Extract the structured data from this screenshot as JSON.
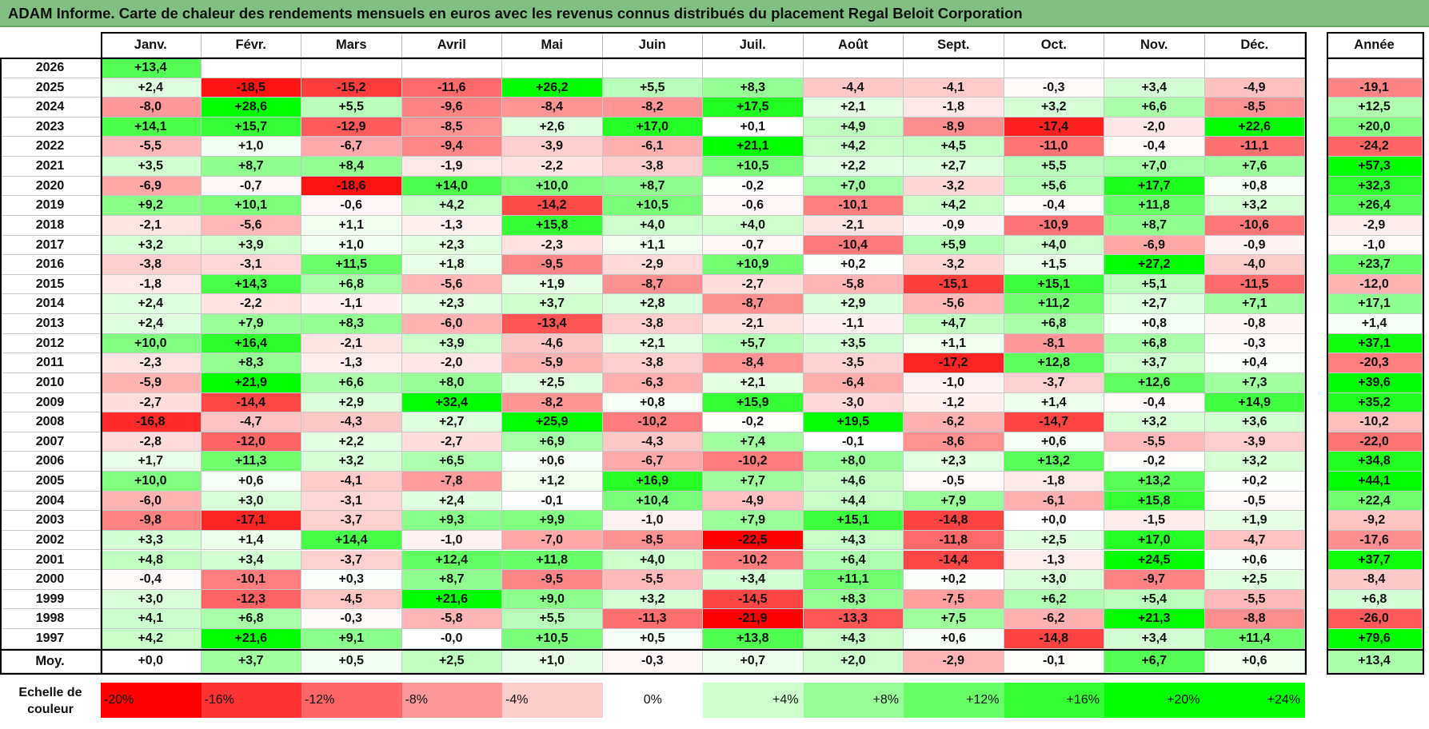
{
  "title": "ADAM Informe. Carte de chaleur des rendements mensuels en euros avec les revenus connus distribués du placement Regal Beloit Corporation",
  "months": [
    "Janv.",
    "Févr.",
    "Mars",
    "Avril",
    "Mai",
    "Juin",
    "Juil.",
    "Août",
    "Sept.",
    "Oct.",
    "Nov.",
    "Déc."
  ],
  "annual_header": "Année",
  "average_label": "Moy.",
  "scale_label_line1": "Echelle de",
  "scale_label_line2": "couleur",
  "colors": {
    "green": "#00ff00",
    "red": "#ff0000",
    "title_bg": "#7fbf7f",
    "neutral": "#ffffff"
  },
  "chart_data": {
    "type": "heatmap",
    "title": "ADAM Informe. Carte de chaleur des rendements mensuels en euros avec les revenus connus distribués du placement Regal Beloit Corporation",
    "x_categories": [
      "Janv.",
      "Févr.",
      "Mars",
      "Avril",
      "Mai",
      "Juin",
      "Juil.",
      "Août",
      "Sept.",
      "Oct.",
      "Nov.",
      "Déc."
    ],
    "rows": [
      {
        "year": "2026",
        "values": [
          "+13,4",
          "",
          "",
          "",
          "",
          "",
          "",
          "",
          "",
          "",
          "",
          ""
        ],
        "annual": ""
      },
      {
        "year": "2025",
        "values": [
          "+2,4",
          "-18,5",
          "-15,2",
          "-11,6",
          "+26,2",
          "+5,5",
          "+8,3",
          "-4,4",
          "-4,1",
          "-0,3",
          "+3,4",
          "-4,9"
        ],
        "annual": "-19,1"
      },
      {
        "year": "2024",
        "values": [
          "-8,0",
          "+28,6",
          "+5,5",
          "-9,6",
          "-8,4",
          "-8,2",
          "+17,5",
          "+2,1",
          "-1,8",
          "+3,2",
          "+6,6",
          "-8,5"
        ],
        "annual": "+12,5"
      },
      {
        "year": "2023",
        "values": [
          "+14,1",
          "+15,7",
          "-12,9",
          "-8,5",
          "+2,6",
          "+17,0",
          "+0,1",
          "+4,9",
          "-8,9",
          "-17,4",
          "-2,0",
          "+22,6"
        ],
        "annual": "+20,0"
      },
      {
        "year": "2022",
        "values": [
          "-5,5",
          "+1,0",
          "-6,7",
          "-9,4",
          "-3,9",
          "-6,1",
          "+21,1",
          "+4,2",
          "+4,5",
          "-11,0",
          "-0,4",
          "-11,1"
        ],
        "annual": "-24,2"
      },
      {
        "year": "2021",
        "values": [
          "+3,5",
          "+8,7",
          "+8,4",
          "-1,9",
          "-2,2",
          "-3,8",
          "+10,5",
          "+2,2",
          "+2,7",
          "+5,5",
          "+7,0",
          "+7,6"
        ],
        "annual": "+57,3"
      },
      {
        "year": "2020",
        "values": [
          "-6,9",
          "-0,7",
          "-18,6",
          "+14,0",
          "+10,0",
          "+8,7",
          "-0,2",
          "+7,0",
          "-3,2",
          "+5,6",
          "+17,7",
          "+0,8"
        ],
        "annual": "+32,3"
      },
      {
        "year": "2019",
        "values": [
          "+9,2",
          "+10,1",
          "-0,6",
          "+4,2",
          "-14,2",
          "+10,5",
          "-0,6",
          "-10,1",
          "+4,2",
          "-0,4",
          "+11,8",
          "+3,2"
        ],
        "annual": "+26,4"
      },
      {
        "year": "2018",
        "values": [
          "-2,1",
          "-5,6",
          "+1,1",
          "-1,3",
          "+15,8",
          "+4,0",
          "+4,0",
          "-2,1",
          "-0,9",
          "-10,9",
          "+8,7",
          "-10,6"
        ],
        "annual": "-2,9"
      },
      {
        "year": "2017",
        "values": [
          "+3,2",
          "+3,9",
          "+1,0",
          "+2,3",
          "-2,3",
          "+1,1",
          "-0,7",
          "-10,4",
          "+5,9",
          "+4,0",
          "-6,9",
          "-0,9"
        ],
        "annual": "-1,0"
      },
      {
        "year": "2016",
        "values": [
          "-3,8",
          "-3,1",
          "+11,5",
          "+1,8",
          "-9,5",
          "-2,9",
          "+10,9",
          "+0,2",
          "-3,2",
          "+1,5",
          "+27,2",
          "-4,0"
        ],
        "annual": "+23,7"
      },
      {
        "year": "2015",
        "values": [
          "-1,8",
          "+14,3",
          "+6,8",
          "-5,6",
          "+1,9",
          "-8,7",
          "-2,7",
          "-5,8",
          "-15,1",
          "+15,1",
          "+5,1",
          "-11,5"
        ],
        "annual": "-12,0"
      },
      {
        "year": "2014",
        "values": [
          "+2,4",
          "-2,2",
          "-1,1",
          "+2,3",
          "+3,7",
          "+2,8",
          "-8,7",
          "+2,9",
          "-5,6",
          "+11,2",
          "+2,7",
          "+7,1"
        ],
        "annual": "+17,1"
      },
      {
        "year": "2013",
        "values": [
          "+2,4",
          "+7,9",
          "+8,3",
          "-6,0",
          "-13,4",
          "-3,8",
          "-2,1",
          "-1,1",
          "+4,7",
          "+6,8",
          "+0,8",
          "-0,8"
        ],
        "annual": "+1,4"
      },
      {
        "year": "2012",
        "values": [
          "+10,0",
          "+16,4",
          "-2,1",
          "+3,9",
          "-4,6",
          "+2,1",
          "+5,7",
          "+3,5",
          "+1,1",
          "-8,1",
          "+6,8",
          "-0,3"
        ],
        "annual": "+37,1"
      },
      {
        "year": "2011",
        "values": [
          "-2,3",
          "+8,3",
          "-1,3",
          "-2,0",
          "-5,9",
          "-3,8",
          "-8,4",
          "-3,5",
          "-17,2",
          "+12,8",
          "+3,7",
          "+0,4"
        ],
        "annual": "-20,3"
      },
      {
        "year": "2010",
        "values": [
          "-5,9",
          "+21,9",
          "+6,6",
          "+8,0",
          "+2,5",
          "-6,3",
          "+2,1",
          "-6,4",
          "-1,0",
          "-3,7",
          "+12,6",
          "+7,3"
        ],
        "annual": "+39,6"
      },
      {
        "year": "2009",
        "values": [
          "-2,7",
          "-14,4",
          "+2,9",
          "+32,4",
          "-8,2",
          "+0,8",
          "+15,9",
          "-3,0",
          "-1,2",
          "+1,4",
          "-0,4",
          "+14,9"
        ],
        "annual": "+35,2"
      },
      {
        "year": "2008",
        "values": [
          "-16,8",
          "-4,7",
          "-4,3",
          "+2,7",
          "+25,9",
          "-10,2",
          "-0,2",
          "+19,5",
          "-6,2",
          "-14,7",
          "+3,2",
          "+3,6"
        ],
        "annual": "-10,2"
      },
      {
        "year": "2007",
        "values": [
          "-2,8",
          "-12,0",
          "+2,2",
          "-2,7",
          "+6,9",
          "-4,3",
          "+7,4",
          "-0,1",
          "-8,6",
          "+0,6",
          "-5,5",
          "-3,9"
        ],
        "annual": "-22,0"
      },
      {
        "year": "2006",
        "values": [
          "+1,7",
          "+11,3",
          "+3,2",
          "+6,5",
          "+0,6",
          "-6,7",
          "-10,2",
          "+8,0",
          "+2,3",
          "+13,2",
          "-0,2",
          "+3,2"
        ],
        "annual": "+34,8"
      },
      {
        "year": "2005",
        "values": [
          "+10,0",
          "+0,6",
          "-4,1",
          "-7,8",
          "+1,2",
          "+16,9",
          "+7,7",
          "+4,6",
          "-0,5",
          "-1,8",
          "+13,2",
          "+0,2"
        ],
        "annual": "+44,1"
      },
      {
        "year": "2004",
        "values": [
          "-6,0",
          "+3,0",
          "-3,1",
          "+2,4",
          "-0,1",
          "+10,4",
          "-4,9",
          "+4,4",
          "+7,9",
          "-6,1",
          "+15,8",
          "-0,5"
        ],
        "annual": "+22,4"
      },
      {
        "year": "2003",
        "values": [
          "-9,8",
          "-17,1",
          "-3,7",
          "+9,3",
          "+9,9",
          "-1,0",
          "+7,9",
          "+15,1",
          "-14,8",
          "+0,0",
          "-1,5",
          "+1,9"
        ],
        "annual": "-9,2"
      },
      {
        "year": "2002",
        "values": [
          "+3,3",
          "+1,4",
          "+14,4",
          "-1,0",
          "-7,0",
          "-8,5",
          "-22,5",
          "+4,3",
          "-11,8",
          "+2,5",
          "+17,0",
          "-4,7"
        ],
        "annual": "-17,6"
      },
      {
        "year": "2001",
        "values": [
          "+4,8",
          "+3,4",
          "-3,7",
          "+12,4",
          "+11,8",
          "+4,0",
          "-10,2",
          "+6,4",
          "-14,4",
          "-1,3",
          "+24,5",
          "+0,6"
        ],
        "annual": "+37,7"
      },
      {
        "year": "2000",
        "values": [
          "-0,4",
          "-10,1",
          "+0,3",
          "+8,7",
          "-9,5",
          "-5,5",
          "+3,4",
          "+11,1",
          "+0,2",
          "+3,0",
          "-9,7",
          "+2,5"
        ],
        "annual": "-8,4"
      },
      {
        "year": "1999",
        "values": [
          "+3,0",
          "-12,3",
          "-4,5",
          "+21,6",
          "+9,0",
          "+3,2",
          "-14,5",
          "+8,3",
          "-7,5",
          "+6,2",
          "+5,4",
          "-5,5"
        ],
        "annual": "+6,8"
      },
      {
        "year": "1998",
        "values": [
          "+4,1",
          "+6,8",
          "-0,3",
          "-5,8",
          "+5,5",
          "-11,3",
          "-21,9",
          "-13,3",
          "+7,5",
          "-6,2",
          "+21,3",
          "-8,8"
        ],
        "annual": "-26,0"
      },
      {
        "year": "1997",
        "values": [
          "+4,2",
          "+21,6",
          "+9,1",
          "-0,0",
          "+10,5",
          "+0,5",
          "+13,8",
          "+4,3",
          "+0,6",
          "-14,8",
          "+3,4",
          "+11,4"
        ],
        "annual": "+79,6"
      }
    ],
    "average": {
      "values": [
        "+0,0",
        "+3,7",
        "+0,5",
        "+2,5",
        "+1,0",
        "-0,3",
        "+0,7",
        "+2,0",
        "-2,9",
        "-0,1",
        "+6,7",
        "+0,6"
      ],
      "annual": "+13,4"
    },
    "scale": [
      {
        "label": "-20%",
        "value": -20
      },
      {
        "label": "-16%",
        "value": -16
      },
      {
        "label": "-12%",
        "value": -12
      },
      {
        "label": "-8%",
        "value": -8
      },
      {
        "label": "-4%",
        "value": -4
      },
      {
        "label": "0%",
        "value": 0
      },
      {
        "label": "+4%",
        "value": 4
      },
      {
        "label": "+8%",
        "value": 8
      },
      {
        "label": "+12%",
        "value": 12
      },
      {
        "label": "+16%",
        "value": 16
      },
      {
        "label": "+20%",
        "value": 20
      },
      {
        "label": "+24%",
        "value": 24
      }
    ],
    "monthly_color_limit": 20,
    "annual_color_limit": 40
  }
}
